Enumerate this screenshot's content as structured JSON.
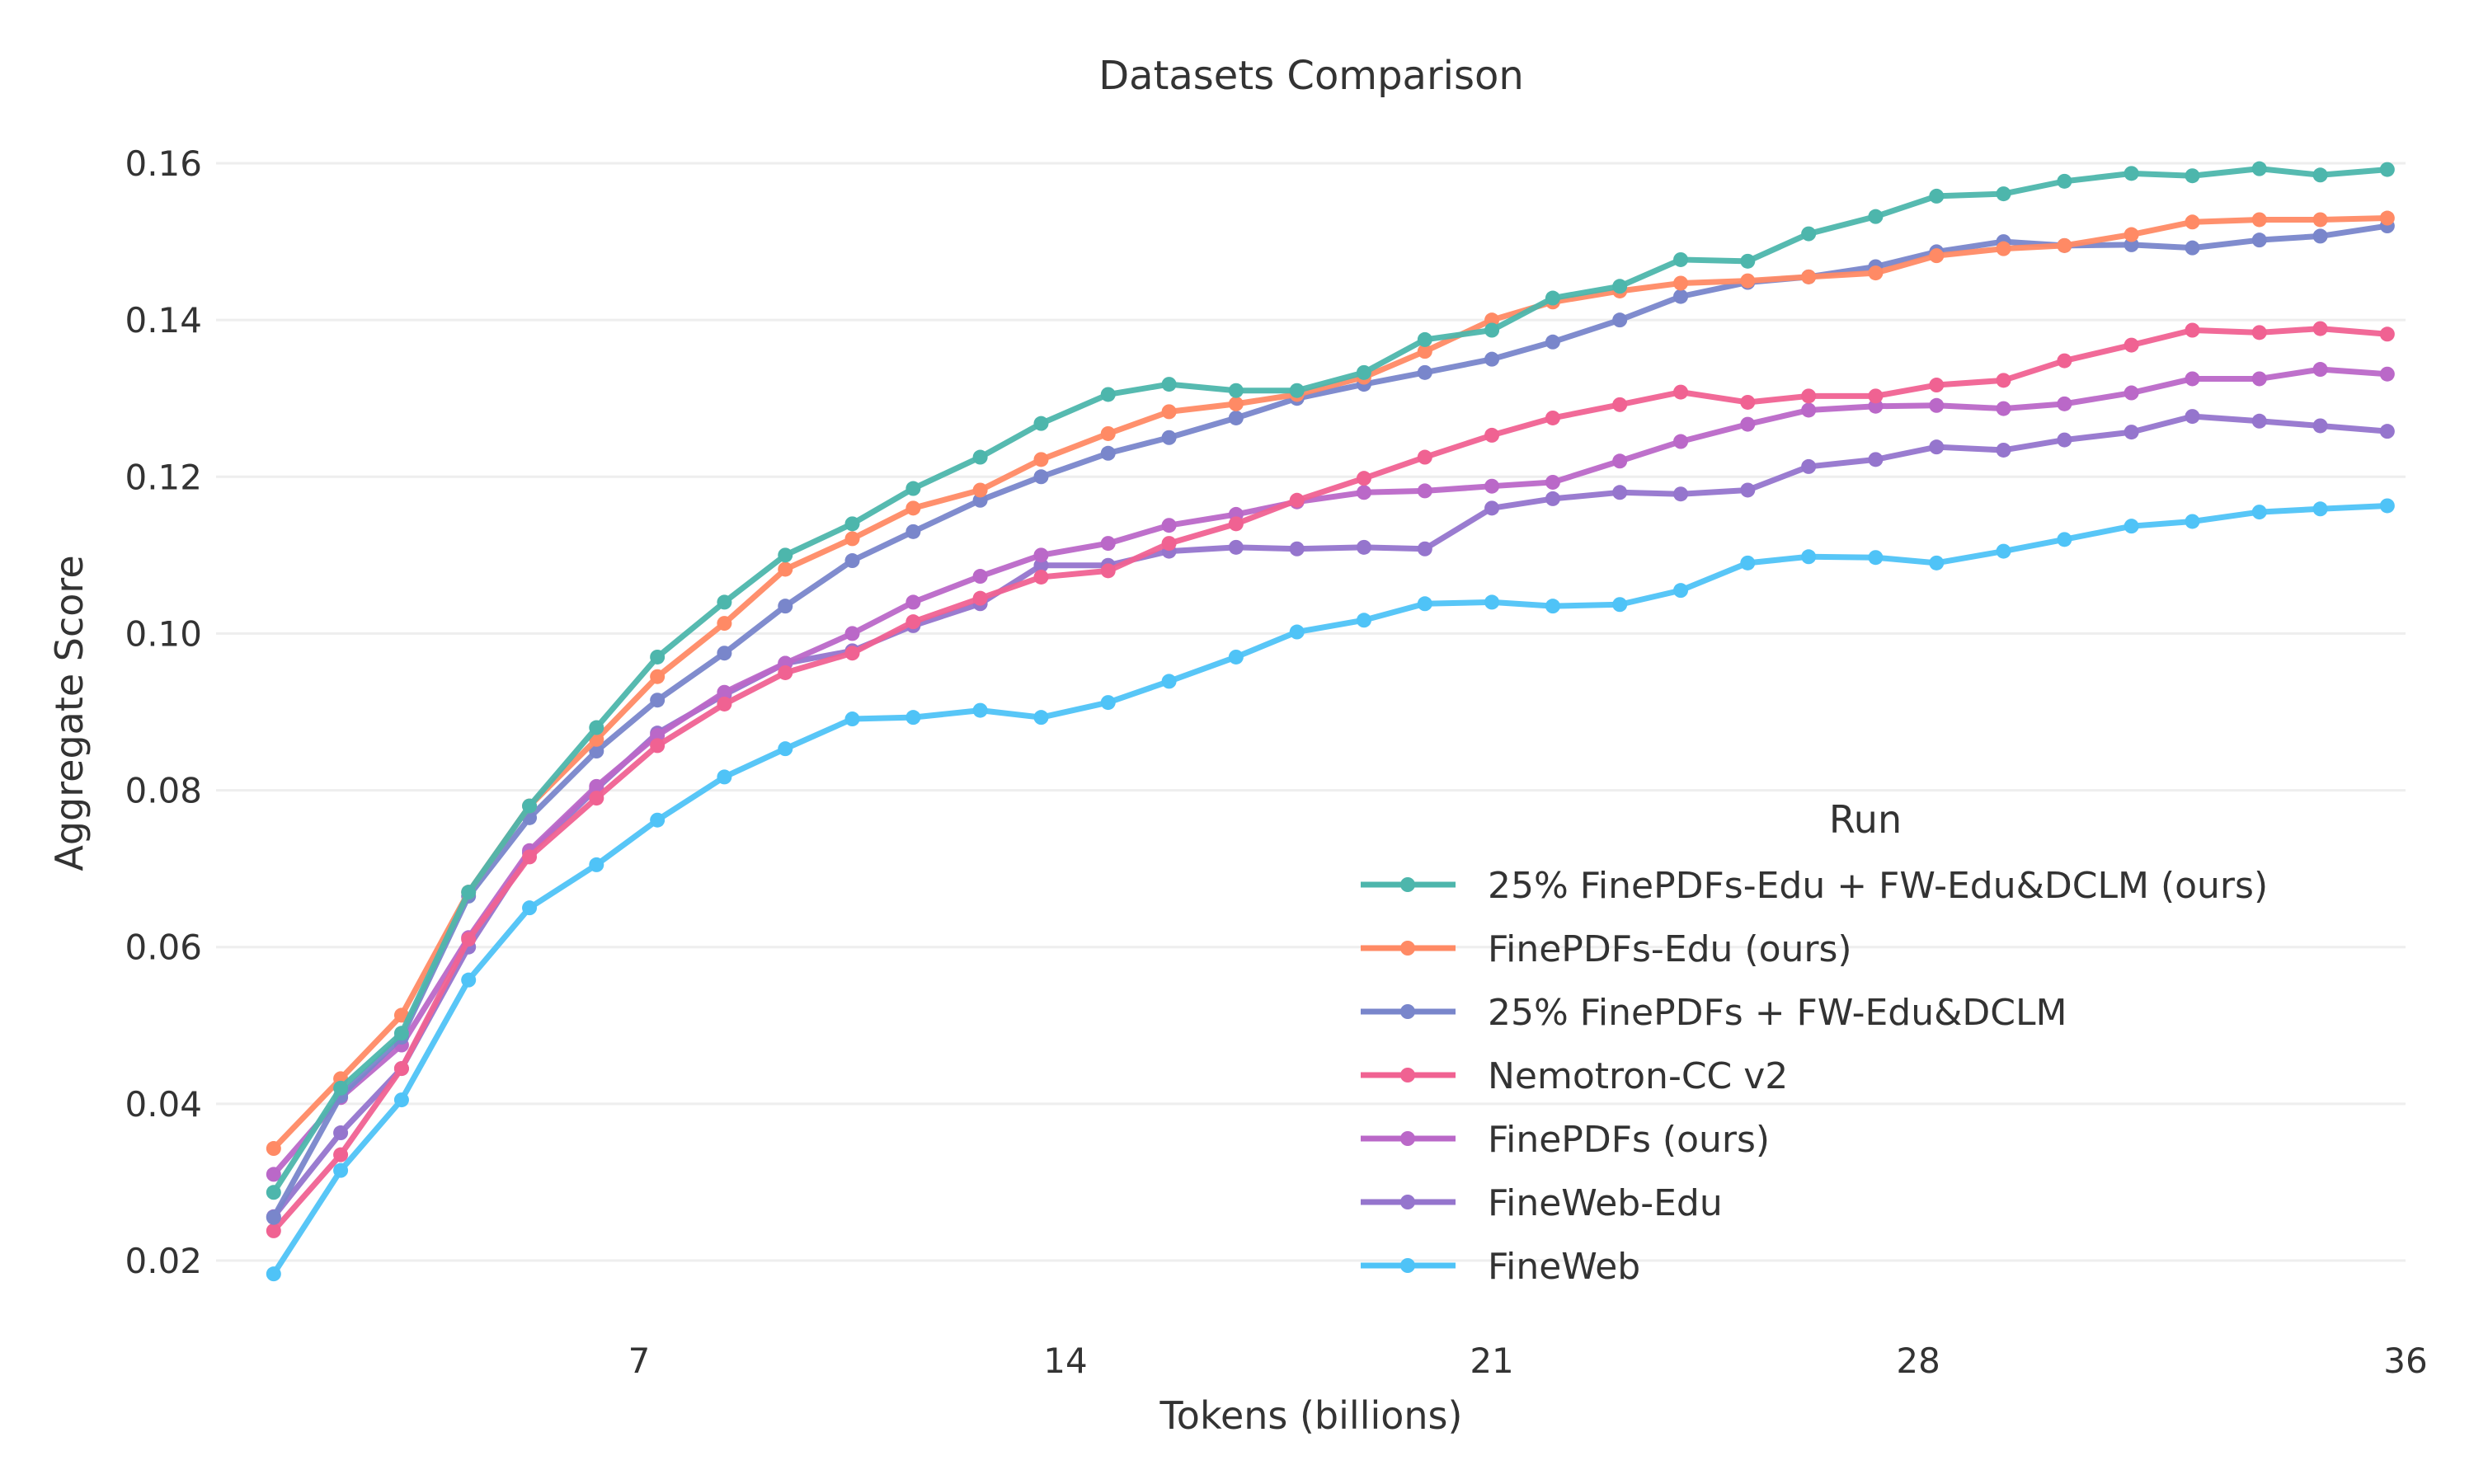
{
  "chart_data": {
    "type": "line",
    "title": "Datasets Comparison",
    "xlabel": "Tokens (billions)",
    "ylabel": "Aggregate Score",
    "xlim": [
      0,
      36
    ],
    "ylim": [
      0.012,
      0.165
    ],
    "x_ticks": [
      7,
      14,
      21,
      28,
      36
    ],
    "x_tick_labels": [
      "7",
      "14",
      "21",
      "28",
      "36"
    ],
    "y_ticks": [
      0.02,
      0.04,
      0.06,
      0.08,
      0.1,
      0.12,
      0.14,
      0.16
    ],
    "y_tick_labels": [
      "0.02",
      "0.04",
      "0.06",
      "0.08",
      "0.10",
      "0.12",
      "0.14",
      "0.16"
    ],
    "grid": true,
    "legend_title": "Run",
    "legend_position": "bottom-right",
    "x": [
      1.0,
      2.1,
      3.1,
      4.2,
      5.2,
      6.3,
      7.3,
      8.4,
      9.4,
      10.5,
      11.5,
      12.6,
      13.6,
      14.7,
      15.7,
      16.8,
      17.8,
      18.9,
      19.9,
      21.0,
      22.0,
      23.1,
      24.1,
      25.2,
      26.2,
      27.3,
      28.3,
      29.4,
      30.4,
      31.5,
      32.5,
      33.6,
      34.6,
      35.7
    ],
    "series": [
      {
        "name": "25% FinePDFs-Edu + FW-Edu&DCLM (ours)",
        "color": "#4db6ac",
        "values": [
          0.0287,
          0.042,
          0.049,
          0.067,
          0.078,
          0.088,
          0.097,
          0.104,
          0.11,
          0.114,
          0.1185,
          0.1225,
          0.1268,
          0.1305,
          0.1318,
          0.131,
          0.131,
          0.1333,
          0.1375,
          0.1387,
          0.1428,
          0.1443,
          0.1477,
          0.1475,
          0.151,
          0.1532,
          0.1558,
          0.1561,
          0.1577,
          0.1587,
          0.1584,
          0.1593,
          0.1585,
          0.1592
        ]
      },
      {
        "name": "FinePDFs-Edu (ours)",
        "color": "#ff8a65",
        "values": [
          0.0343,
          0.0432,
          0.0513,
          0.067,
          0.078,
          0.0865,
          0.0945,
          0.1013,
          0.1082,
          0.1121,
          0.116,
          0.1183,
          0.1222,
          0.1255,
          0.1283,
          0.1293,
          0.1305,
          0.1327,
          0.136,
          0.14,
          0.1423,
          0.1437,
          0.1447,
          0.145,
          0.1455,
          0.146,
          0.1482,
          0.1491,
          0.1495,
          0.1509,
          0.1525,
          0.1528,
          0.1528,
          0.153
        ]
      },
      {
        "name": "25% FinePDFs + FW-Edu&DCLM",
        "color": "#7986cb",
        "values": [
          0.0255,
          0.041,
          0.0485,
          0.0665,
          0.0765,
          0.085,
          0.0915,
          0.0975,
          0.1035,
          0.1093,
          0.113,
          0.117,
          0.12,
          0.123,
          0.125,
          0.1275,
          0.13,
          0.1318,
          0.1333,
          0.135,
          0.1372,
          0.14,
          0.143,
          0.1448,
          0.1455,
          0.1468,
          0.1487,
          0.15,
          0.1495,
          0.1496,
          0.1492,
          0.1502,
          0.1507,
          0.152
        ]
      },
      {
        "name": "Nemotron-CC v2",
        "color": "#f06292",
        "values": [
          0.0238,
          0.0335,
          0.0445,
          0.061,
          0.0715,
          0.079,
          0.0857,
          0.091,
          0.095,
          0.0975,
          0.1015,
          0.1045,
          0.1072,
          0.108,
          0.1115,
          0.114,
          0.117,
          0.1198,
          0.1225,
          0.1253,
          0.1275,
          0.1292,
          0.1308,
          0.1295,
          0.1303,
          0.1303,
          0.1317,
          0.1323,
          0.1348,
          0.1368,
          0.1387,
          0.1384,
          0.1389,
          0.1382
        ]
      },
      {
        "name": "FinePDFs (ours)",
        "color": "#ba68c8",
        "values": [
          0.031,
          0.0408,
          0.0475,
          0.0612,
          0.0723,
          0.0805,
          0.087,
          0.0925,
          0.0962,
          0.1,
          0.104,
          0.1073,
          0.11,
          0.1115,
          0.1138,
          0.1152,
          0.1168,
          0.118,
          0.1182,
          0.1188,
          0.1193,
          0.122,
          0.1245,
          0.1267,
          0.1285,
          0.129,
          0.1291,
          0.1287,
          0.1293,
          0.1307,
          0.1325,
          0.1325,
          0.1337,
          0.1331
        ]
      },
      {
        "name": "FineWeb-Edu",
        "color": "#9575cd",
        "values": [
          0.0256,
          0.0363,
          0.0445,
          0.06,
          0.072,
          0.0802,
          0.0873,
          0.0922,
          0.0962,
          0.0978,
          0.101,
          0.1038,
          0.1087,
          0.1087,
          0.1105,
          0.111,
          0.1108,
          0.111,
          0.1108,
          0.116,
          0.1172,
          0.118,
          0.1178,
          0.1183,
          0.1213,
          0.1222,
          0.1238,
          0.1234,
          0.1247,
          0.1257,
          0.1277,
          0.1271,
          0.1265,
          0.1258
        ]
      },
      {
        "name": "FineWeb",
        "color": "#4fc3f7",
        "values": [
          0.0183,
          0.0315,
          0.0405,
          0.0558,
          0.065,
          0.0705,
          0.0762,
          0.0817,
          0.0853,
          0.0891,
          0.0893,
          0.0902,
          0.0893,
          0.0912,
          0.0939,
          0.097,
          0.1002,
          0.1017,
          0.1038,
          0.104,
          0.1035,
          0.1037,
          0.1055,
          0.109,
          0.1098,
          0.1097,
          0.109,
          0.1105,
          0.112,
          0.1137,
          0.1143,
          0.1155,
          0.1159,
          0.1163
        ]
      }
    ]
  }
}
